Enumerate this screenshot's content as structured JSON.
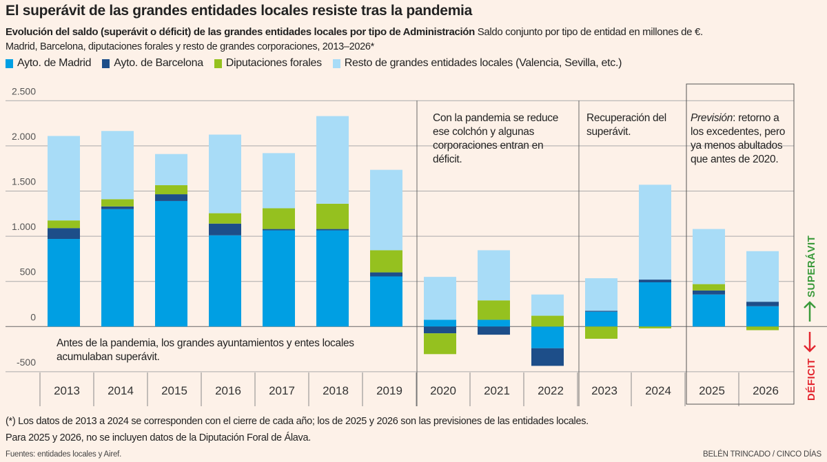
{
  "header": {
    "title": "El superávit de las grandes entidades locales resiste tras la pandemia",
    "subtitle_bold": "Evolución del saldo (superávit o déficit) de las grandes entidades locales por tipo de Administración",
    "subtitle_rest": " Saldo conjunto por tipo de entidad en millones de €.",
    "subtitle2": "Madrid, Barcelona, diputaciones forales y resto de grandes corporaciones, 2013–2026*"
  },
  "colors": {
    "background": "#fdf1e8",
    "madrid": "#009fe3",
    "barcelona": "#1d4e89",
    "diputaciones": "#95c11f",
    "resto": "#a8dcf7",
    "superavit": "#3a9a3a",
    "deficit": "#e3262f"
  },
  "annotations": {
    "pre": "Antes de la pandemia, los grandes ayuntamientos y entes locales acumulaban superávit.",
    "pandemic": "Con la pandemia se reduce ese colchón y algunas corporaciones entran en déficit.",
    "recovery": "Recuperación del superávit.",
    "forecast_italic": "Previsión",
    "forecast_rest": ": retorno a los excedentes, pero ya menos abultados que antes de 2020.",
    "superavit": "SUPERÁVIT",
    "deficit": "DÉFICIT"
  },
  "footer": {
    "note1": "(*) Los datos de 2013 a 2024 se corresponden con el cierre de cada año; los de 2025 y 2026 son las previsiones de las entidades locales.",
    "note2": "Para 2025 y 2026, no se incluyen datos de la Diputación Foral de Álava.",
    "source": "Fuentes: entidades locales y Airef.",
    "credit": "BELÉN TRINCADO / CINCO DÍAS"
  },
  "chart_data": {
    "type": "bar",
    "stacked": true,
    "title": "El superávit de las grandes entidades locales resiste tras la pandemia",
    "ylabel": "",
    "xlabel": "",
    "ylim": [
      -500,
      2500
    ],
    "yticks": [
      -500,
      0,
      500,
      1000,
      1500,
      2000,
      2500
    ],
    "ytick_labels": [
      "-500",
      "0",
      "500",
      "1.000",
      "1.500",
      "2.000",
      "2.500"
    ],
    "grid": true,
    "legend_position": "top-left",
    "categories": [
      "2013",
      "2014",
      "2015",
      "2016",
      "2017",
      "2018",
      "2019",
      "2020",
      "2021",
      "2022",
      "2023",
      "2024",
      "2025",
      "2026"
    ],
    "series": [
      {
        "name": "Ayto. de Madrid",
        "color": "#009fe3",
        "values": [
          970,
          1300,
          1390,
          1010,
          1065,
          1065,
          555,
          75,
          75,
          -240,
          165,
          490,
          355,
          225
        ]
      },
      {
        "name": "Ayto. de Barcelona",
        "color": "#1d4e89",
        "values": [
          120,
          30,
          75,
          130,
          15,
          15,
          45,
          -75,
          -90,
          -195,
          10,
          30,
          45,
          50
        ]
      },
      {
        "name": "Diputaciones forales",
        "color": "#95c11f",
        "values": [
          85,
          80,
          100,
          115,
          230,
          280,
          245,
          -230,
          215,
          120,
          -135,
          -20,
          70,
          -40
        ]
      },
      {
        "name": "Resto de grandes entidades locales (Valencia, Sevilla, etc.)",
        "color": "#a8dcf7",
        "values": [
          935,
          755,
          345,
          870,
          610,
          970,
          890,
          475,
          555,
          235,
          360,
          1050,
          610,
          560
        ]
      }
    ]
  }
}
